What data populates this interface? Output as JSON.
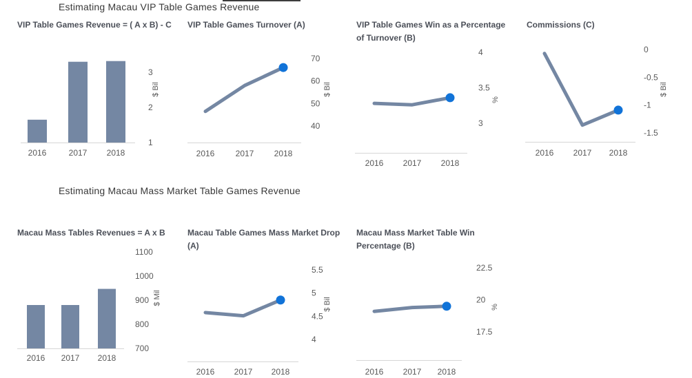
{
  "sections": [
    {
      "title": "Estimating Macau VIP Table Games Revenue"
    },
    {
      "title": "Estimating Macau Mass Market Table Games Revenue"
    }
  ],
  "colors": {
    "series_slate": "#7487A3",
    "marker_blue": "#1173D8",
    "axis_line": "#D6D6D6",
    "tick_text": "#595959",
    "chart_title": "#4B4F58",
    "section_title": "#393939"
  },
  "x_categories": [
    "2016",
    "2017",
    "2018"
  ],
  "chart_data": [
    {
      "type": "bar",
      "title": "VIP Table Games Revenue = ( A x B) - C",
      "title_lines": [
        "VIP Table Games Revenue = ( A x B) - C"
      ],
      "ylabel": "$ Bil",
      "categories": [
        "2016",
        "2017",
        "2018"
      ],
      "values": [
        1.65,
        3.3,
        3.32
      ],
      "yticks": [
        1,
        2,
        3
      ],
      "ylim": [
        1,
        3.5
      ],
      "legend": "none",
      "grid": false
    },
    {
      "type": "line",
      "title": "VIP Table Games Turnover (A)",
      "title_lines": [
        "VIP Table Games Turnover (A)"
      ],
      "ylabel": "$ Bil",
      "categories": [
        "2016",
        "2017",
        "2018"
      ],
      "values": [
        46.5,
        58,
        66
      ],
      "yticks": [
        40,
        50,
        60,
        70
      ],
      "ylim": [
        37,
        72
      ],
      "marker_on_last": true,
      "legend": "none",
      "grid": false
    },
    {
      "type": "line",
      "title": "VIP Table Games Win as a Percentage of Turnover (B)",
      "title_lines": [
        "VIP Table Games Win as a Percentage",
        "of Turnover (B)"
      ],
      "ylabel": "%",
      "categories": [
        "2016",
        "2017",
        "2018"
      ],
      "values": [
        3.28,
        3.26,
        3.36
      ],
      "yticks": [
        3,
        3.5,
        4
      ],
      "ylim": [
        2.8,
        4.15
      ],
      "marker_on_last": true,
      "legend": "none",
      "grid": false
    },
    {
      "type": "line",
      "title": "Commissions (C)",
      "title_lines": [
        "Commissions (C)"
      ],
      "ylabel": "$ Bil",
      "categories": [
        "2016",
        "2017",
        "2018"
      ],
      "values": [
        -0.07,
        -1.36,
        -1.09
      ],
      "yticks": [
        0,
        -0.5,
        -1,
        -1.5
      ],
      "ylim": [
        -1.7,
        0.1
      ],
      "marker_on_last": true,
      "legend": "none",
      "grid": false
    },
    {
      "type": "bar",
      "title": "Macau Mass Tables Revenues = A x B",
      "title_lines": [
        "Macau Mass Tables Revenues = A x B"
      ],
      "ylabel": "$ Mil",
      "categories": [
        "2016",
        "2017",
        "2018"
      ],
      "values": [
        880,
        880,
        947
      ],
      "yticks": [
        700,
        800,
        900,
        1000,
        1100
      ],
      "ylim": [
        700,
        1100
      ],
      "legend": "none",
      "grid": false
    },
    {
      "type": "line",
      "title": "Macau Table Games Mass Market Drop (A)",
      "title_lines": [
        "Macau Table Games Mass Market Drop",
        "(A)"
      ],
      "ylabel": "$ Bil",
      "categories": [
        "2016",
        "2017",
        "2018"
      ],
      "values": [
        4.58,
        4.51,
        4.85
      ],
      "yticks": [
        4,
        4.5,
        5,
        5.5
      ],
      "ylim": [
        3.75,
        5.7
      ],
      "marker_on_last": true,
      "legend": "none",
      "grid": false
    },
    {
      "type": "line",
      "title": "Macau Mass Market Table Win Percentage (B)",
      "title_lines": [
        "Macau Mass Market Table Win",
        "Percentage (B)"
      ],
      "ylabel": "%",
      "categories": [
        "2016",
        "2017",
        "2018"
      ],
      "values": [
        19.1,
        19.4,
        19.5
      ],
      "yticks": [
        17.5,
        20,
        22.5
      ],
      "ylim": [
        16,
        23.6
      ],
      "marker_on_last": true,
      "legend": "none",
      "grid": false
    }
  ]
}
